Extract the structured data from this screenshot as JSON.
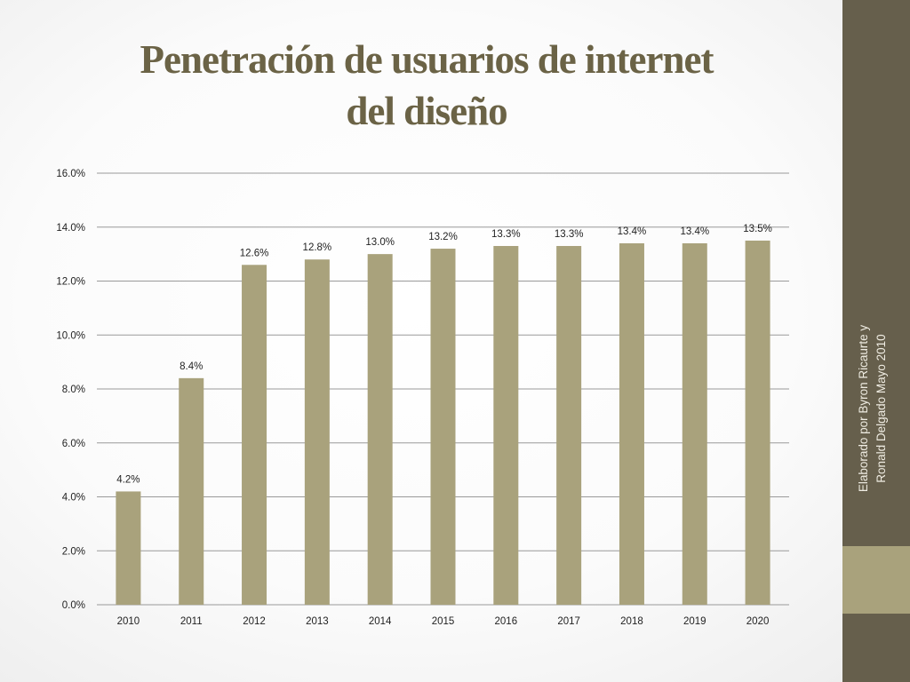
{
  "slide": {
    "title_line1": "Penetración de usuarios de internet",
    "title_line2": "del diseño",
    "credit_line1": "Elaborado por Byron Ricaurte y",
    "credit_line2": "Ronald Delgado Mayo 2010"
  },
  "colors": {
    "bar": "#a9a27c",
    "title": "#6b6346",
    "sidebar": "#665f4c",
    "sidebar_accent": "#a9a27c",
    "gridline": "#9a9a9a"
  },
  "chart_data": {
    "type": "bar",
    "title": "",
    "xlabel": "",
    "ylabel": "",
    "categories": [
      "2010",
      "2011",
      "2012",
      "2013",
      "2014",
      "2015",
      "2016",
      "2017",
      "2018",
      "2019",
      "2020"
    ],
    "values": [
      4.2,
      8.4,
      12.6,
      12.8,
      13.0,
      13.2,
      13.3,
      13.3,
      13.4,
      13.4,
      13.5
    ],
    "data_labels": [
      "4.2%",
      "8.4%",
      "12.6%",
      "12.8%",
      "13.0%",
      "13.2%",
      "13.3%",
      "13.3%",
      "13.4%",
      "13.4%",
      "13.5%"
    ],
    "ylim": [
      0,
      16
    ],
    "yticks": [
      0,
      2,
      4,
      6,
      8,
      10,
      12,
      14,
      16
    ],
    "ytick_labels": [
      "0.0%",
      "2.0%",
      "4.0%",
      "6.0%",
      "8.0%",
      "10.0%",
      "12.0%",
      "14.0%",
      "16.0%"
    ],
    "grid": true,
    "legend": "none"
  }
}
